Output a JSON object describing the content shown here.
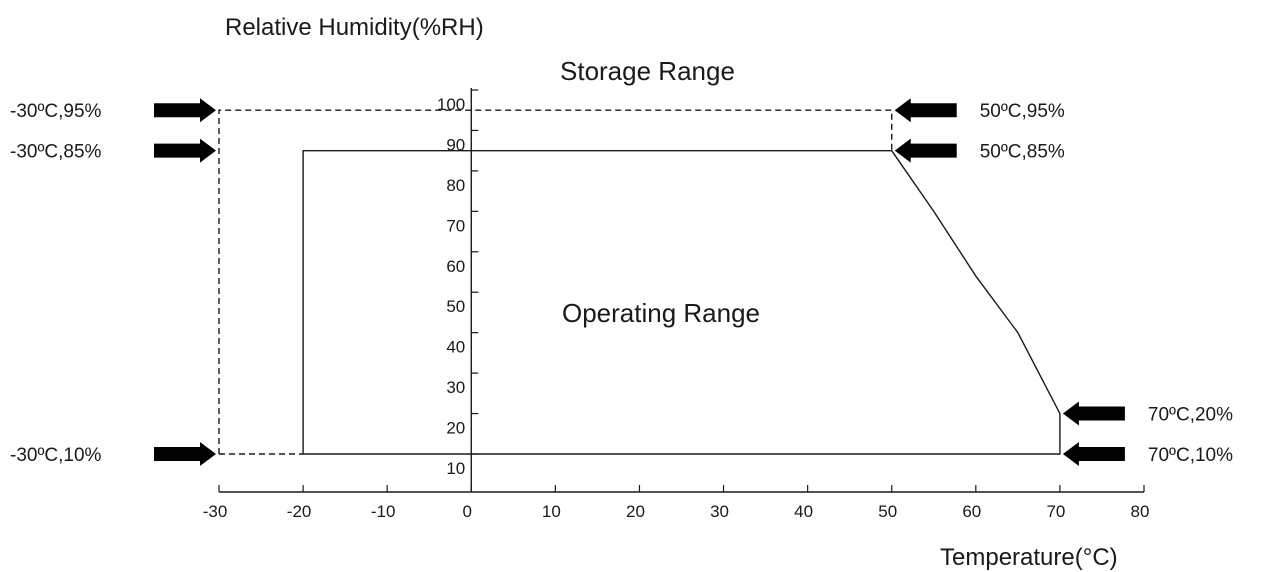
{
  "chart_data": {
    "type": "line",
    "title": "",
    "ylabel": "Relative Humidity(%RH)",
    "xlabel": "Temperature(°C)",
    "xlim": [
      -30,
      80
    ],
    "ylim": [
      10,
      100
    ],
    "x_ticks": [
      "-30",
      "-20",
      "-10",
      "0",
      "10",
      "20",
      "30",
      "40",
      "50",
      "60",
      "70",
      "80"
    ],
    "y_ticks": [
      "10",
      "20",
      "30",
      "40",
      "50",
      "60",
      "70",
      "80",
      "90",
      "100"
    ],
    "series": [
      {
        "name": "Storage Range",
        "style": "dashed",
        "points": [
          [
            -30,
            10
          ],
          [
            -30,
            95
          ],
          [
            50,
            95
          ],
          [
            50,
            85
          ]
        ]
      },
      {
        "name": "Operating Range",
        "style": "solid",
        "points": [
          [
            -20,
            10
          ],
          [
            -20,
            85
          ],
          [
            50,
            85
          ],
          [
            51,
            82
          ],
          [
            55,
            70
          ],
          [
            60,
            54
          ],
          [
            65,
            40
          ],
          [
            70,
            20
          ],
          [
            70,
            10
          ],
          [
            -20,
            10
          ]
        ]
      }
    ],
    "annotations": [
      {
        "text": "-30ºC,95%",
        "x": -30,
        "y": 95,
        "side": "left"
      },
      {
        "text": "-30ºC,85%",
        "x": -30,
        "y": 85,
        "side": "left"
      },
      {
        "text": "-30ºC,10%",
        "x": -30,
        "y": 10,
        "side": "left"
      },
      {
        "text": "50ºC,95%",
        "x": 50,
        "y": 95,
        "side": "right"
      },
      {
        "text": "50ºC,85%",
        "x": 50,
        "y": 85,
        "side": "right"
      },
      {
        "text": "70ºC,20%",
        "x": 70,
        "y": 20,
        "side": "right"
      },
      {
        "text": "70ºC,10%",
        "x": 70,
        "y": 10,
        "side": "right"
      }
    ],
    "region_labels": {
      "storage": "Storage Range",
      "operating": "Operating Range"
    }
  },
  "colors": {
    "line": "#1a1a1a",
    "arrow": "#000000",
    "text": "#1a1a1a"
  }
}
